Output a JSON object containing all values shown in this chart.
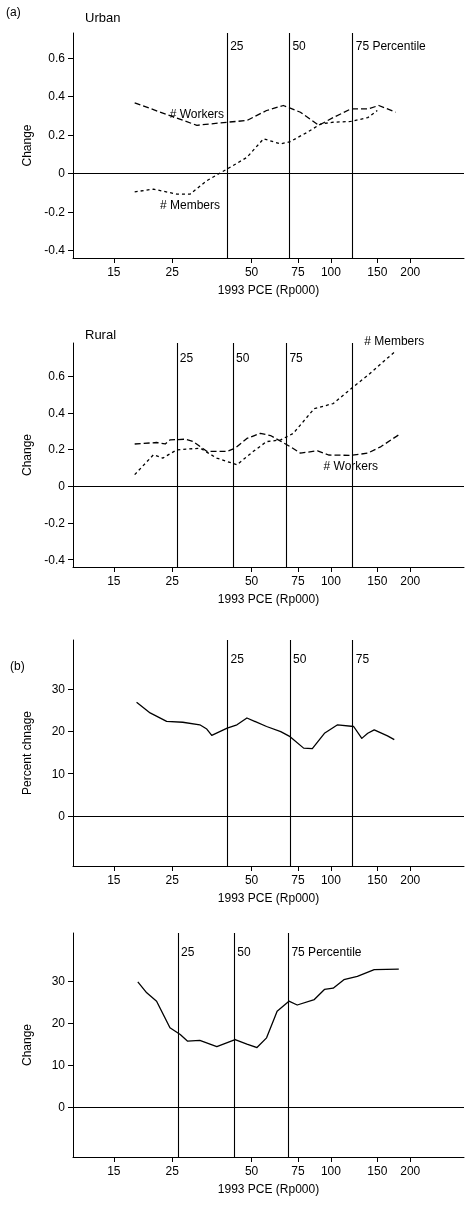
{
  "chart_data": [
    {
      "type": "line",
      "title": "Urban",
      "xlabel": "1993 PCE (Rp000)",
      "ylabel": "Change",
      "log": "x",
      "xlim": [
        10.5,
        320
      ],
      "xticks": [
        15,
        25,
        50,
        75,
        100,
        150,
        200
      ],
      "ylim": [
        -0.44,
        0.73
      ],
      "yticks": [
        -0.4,
        -0.2,
        0,
        0.2,
        0.4,
        0.6
      ],
      "ref_lines": [
        {
          "axis": "y",
          "value": 0,
          "label": null
        },
        {
          "axis": "x",
          "value": 40.4,
          "label": null
        },
        {
          "axis": "x",
          "value": 69.6,
          "label": null
        },
        {
          "axis": "x",
          "value": 121,
          "label": null
        }
      ],
      "annotations": [
        "(a)",
        {
          "text": "25",
          "x": 40.4,
          "y": 0.66
        },
        {
          "text": "50",
          "x": 69.6,
          "y": 0.66
        },
        {
          "text": "75 Percentile",
          "x": 121,
          "y": 0.66
        }
      ],
      "series": [
        {
          "name": "# Workers",
          "color": "#000000",
          "line_style": "dashed",
          "x": [
            18,
            24.5,
            31,
            40.4,
            48,
            57,
            66,
            76.6,
            90,
            102,
            119,
            138,
            152,
            176
          ],
          "values": [
            0.367,
            0.3,
            0.25,
            0.266,
            0.275,
            0.327,
            0.353,
            0.318,
            0.25,
            0.29,
            0.335,
            0.335,
            0.353,
            0.318
          ]
        },
        {
          "name": "# Members",
          "color": "#000000",
          "line_style": "dotted",
          "x": [
            18,
            21.2,
            26,
            29.2,
            33.8,
            40.4,
            48,
            55.5,
            64.5,
            70,
            81.4,
            91.5,
            102,
            119,
            138,
            150
          ],
          "values": [
            -0.096,
            -0.082,
            -0.108,
            -0.108,
            -0.038,
            0.023,
            0.083,
            0.18,
            0.153,
            0.165,
            0.214,
            0.257,
            0.266,
            0.27,
            0.29,
            0.327
          ]
        }
      ]
    },
    {
      "type": "line",
      "title": "Rural",
      "xlabel": "1993 PCE (Rp000)",
      "ylabel": "Change",
      "log": "x",
      "xlim": [
        10.5,
        320
      ],
      "xticks": [
        15,
        25,
        50,
        75,
        100,
        150,
        200
      ],
      "ylim": [
        -0.44,
        0.78
      ],
      "yticks": [
        -0.4,
        -0.2,
        0,
        0.2,
        0.4,
        0.6
      ],
      "ref_lines": [
        {
          "axis": "y",
          "value": 0,
          "label": null
        },
        {
          "axis": "x",
          "value": 26,
          "label": null
        },
        {
          "axis": "x",
          "value": 42.5,
          "label": null
        },
        {
          "axis": "x",
          "value": 67.8,
          "label": null
        },
        {
          "axis": "x",
          "value": 121,
          "label": null
        }
      ],
      "annotations": [
        {
          "text": "25",
          "x": 26,
          "y": 0.7
        },
        {
          "text": "50",
          "x": 42.5,
          "y": 0.7
        },
        {
          "text": "75",
          "x": 67.8,
          "y": 0.7
        }
      ],
      "series": [
        {
          "name": "# Workers",
          "color": "#000000",
          "line_style": "dashed",
          "x": [
            18,
            21.8,
            23.5,
            24.5,
            28,
            30,
            33.8,
            40.4,
            43.3,
            48,
            54,
            59,
            70,
            76.6,
            89,
            98,
            119,
            138,
            155,
            181
          ],
          "values": [
            0.23,
            0.238,
            0.23,
            0.252,
            0.256,
            0.243,
            0.19,
            0.19,
            0.207,
            0.26,
            0.288,
            0.276,
            0.216,
            0.18,
            0.193,
            0.17,
            0.168,
            0.18,
            0.216,
            0.28
          ]
        },
        {
          "name": "# Members",
          "color": "#000000",
          "line_style": "dotted",
          "x": [
            18,
            21.2,
            23,
            26,
            31.9,
            36.9,
            44,
            50.8,
            57,
            64.5,
            72,
            86.5,
            102,
            119,
            138,
            174
          ],
          "values": [
            0.063,
            0.171,
            0.153,
            0.198,
            0.207,
            0.153,
            0.117,
            0.19,
            0.243,
            0.252,
            0.288,
            0.423,
            0.45,
            0.53,
            0.604,
            0.73
          ]
        }
      ]
    },
    {
      "type": "line",
      "xlabel": "1993 PCE (Rp000)",
      "ylabel": "Percent chnage",
      "log": "x",
      "xlim": [
        10.5,
        320
      ],
      "xticks": [
        15,
        25,
        50,
        75,
        100,
        150,
        200
      ],
      "ylim": [
        -11.8,
        41.5
      ],
      "yticks": [
        0,
        10,
        20,
        30
      ],
      "ref_lines": [
        {
          "axis": "y",
          "value": 0,
          "label": null
        },
        {
          "axis": "x",
          "value": 40.5,
          "label": null
        },
        {
          "axis": "x",
          "value": 70,
          "label": null
        },
        {
          "axis": "x",
          "value": 121,
          "label": null
        }
      ],
      "annotations": [
        "(b)",
        {
          "text": "25",
          "x": 40.5,
          "y": 37
        },
        {
          "text": "50",
          "x": 70,
          "y": 37
        },
        {
          "text": "75",
          "x": 121,
          "y": 37
        }
      ],
      "series": [
        {
          "color": "#000000",
          "line_style": "solid",
          "x": [
            18.3,
            20.6,
            23.8,
            27.4,
            31.8,
            33.8,
            35.3,
            40.4,
            44,
            48,
            57,
            64.5,
            70,
            78.8,
            85,
            94.5,
            106,
            122,
            131,
            138,
            146,
            164,
            174
          ],
          "values": [
            26.8,
            24.3,
            22.3,
            22.1,
            21.5,
            20.5,
            19,
            20.7,
            21.5,
            23.1,
            21.1,
            19.9,
            18.7,
            16,
            15.9,
            19.5,
            21.5,
            21.1,
            18.3,
            19.5,
            20.3,
            18.9,
            18
          ]
        }
      ]
    },
    {
      "type": "line",
      "xlabel": "1993 PCE (Rp000)",
      "ylabel": "Change",
      "log": "x",
      "xlim": [
        10.5,
        320
      ],
      "xticks": [
        15,
        25,
        50,
        75,
        100,
        150,
        200
      ],
      "ylim": [
        -11.8,
        41.4
      ],
      "yticks": [
        0,
        10,
        20,
        30
      ],
      "ref_lines": [
        {
          "axis": "y",
          "value": 0,
          "label": null
        },
        {
          "axis": "x",
          "value": 26.3,
          "label": null
        },
        {
          "axis": "x",
          "value": 43,
          "label": null
        },
        {
          "axis": "x",
          "value": 69,
          "label": null
        }
      ],
      "annotations": [
        {
          "text": "25",
          "x": 26.3,
          "y": 37
        },
        {
          "text": "50",
          "x": 43,
          "y": 37
        },
        {
          "text": "75 Percentile",
          "x": 69,
          "y": 37
        }
      ],
      "series": [
        {
          "color": "#000000",
          "line_style": "solid",
          "x": [
            18.5,
            20,
            21.8,
            24.5,
            26.8,
            28.6,
            31.8,
            36.9,
            43.3,
            48,
            52.4,
            57,
            62.5,
            69.3,
            74.5,
            86.5,
            94.5,
            102,
            112,
            126,
            146,
            181
          ],
          "values": [
            29.8,
            27.2,
            25.2,
            18.9,
            17.3,
            15.7,
            15.9,
            14.4,
            16.1,
            15,
            14.2,
            16.5,
            22.8,
            25.2,
            24.3,
            25.6,
            28,
            28.3,
            30.3,
            31.1,
            32.7,
            32.8
          ]
        }
      ]
    }
  ]
}
